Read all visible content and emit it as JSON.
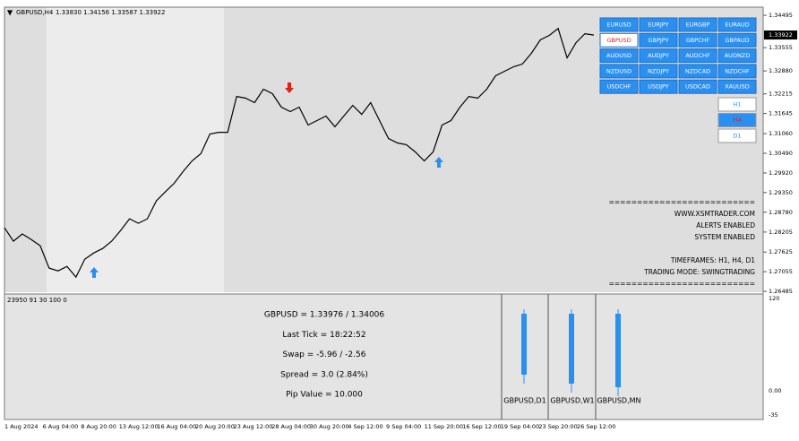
{
  "header": {
    "symbol": "GBPUSD,H4",
    "quote": "1.33830 1.34156 1.33587 1.33922"
  },
  "chart_data": {
    "type": "line",
    "color": "#000000",
    "values": [
      1.2833,
      1.2794,
      1.2815,
      1.2799,
      1.2781,
      1.2716,
      1.2708,
      1.2721,
      1.269,
      1.2742,
      1.276,
      1.2773,
      1.2794,
      1.2825,
      1.2859,
      1.2846,
      1.2859,
      1.2911,
      1.2937,
      1.2962,
      1.2996,
      1.3027,
      1.3048,
      1.3105,
      1.311,
      1.311,
      1.3214,
      1.3209,
      1.3196,
      1.3235,
      1.3222,
      1.3183,
      1.317,
      1.3183,
      1.3131,
      1.3144,
      1.3157,
      1.3126,
      1.3157,
      1.3188,
      1.3162,
      1.3196,
      1.3144,
      1.3092,
      1.3079,
      1.3074,
      1.3053,
      1.3027,
      1.3053,
      1.3131,
      1.3144,
      1.3183,
      1.3214,
      1.3209,
      1.3235,
      1.3274,
      1.3287,
      1.33,
      1.3308,
      1.3339,
      1.3378,
      1.3391,
      1.3411,
      1.3326,
      1.337,
      1.3396,
      1.3392
    ],
    "ylim": [
      1.2646,
      1.3473
    ],
    "yticks": [
      1.34495,
      1.33555,
      {
        "value": 1.3288,
        "label": "1.32880"
      },
      1.32215,
      1.31645,
      {
        "value": 1.3106,
        "label": "1.31060"
      },
      {
        "value": 1.3049,
        "label": "1.30490"
      },
      {
        "value": 1.2992,
        "label": "1.29920"
      },
      {
        "value": 1.2935,
        "label": "1.29350"
      },
      {
        "value": 1.2878,
        "label": "1.28780"
      },
      1.28205,
      1.27625,
      1.27055,
      1.26485
    ],
    "last_price": 1.33922,
    "x_labels": [
      "1 Aug 2024",
      "6 Aug 04:00",
      "8 Aug 20:00",
      "13 Aug 12:00",
      "16 Aug 04:00",
      "20 Aug 20:00",
      "23 Aug 12:00",
      "28 Aug 04:00",
      "30 Aug 20:00",
      "4 Sep 12:00",
      "9 Sep 04:00",
      "11 Sep 20:00",
      "16 Sep 12:00",
      "19 Sep 04:00",
      "23 Sep 20:00",
      "26 Sep 12:00"
    ]
  },
  "symbol_buttons": [
    "EURUSD",
    "EURJPY",
    "EURGBP",
    "EURAUD",
    "GBPUSD",
    "GBPJPY",
    "GBPCHF",
    "GBPAUD",
    "AUDUSD",
    "AUDJPY",
    "AUDCHF",
    "AUDNZD",
    "NZDUSD",
    "NZDJPY",
    "NZDCAD",
    "NZDCHF",
    "USDCHF",
    "USDJPY",
    "USDCAD",
    "XAUUSD"
  ],
  "timeframe_buttons": [
    "H1",
    "H4",
    "D1"
  ],
  "info_lines": [
    "==========================",
    "WWW.XSMTRADER.COM",
    "ALERTS ENABLED",
    "SYSTEM ENABLED",
    "TIMEFRAMES: H1, H4, D1",
    "TRADING MODE: SWINGTRADING",
    "=========================="
  ],
  "indicator": {
    "label": "23950 91 30 100 0",
    "stats": [
      "GBPUSD = 1.33976 / 1.34006",
      "Last Tick = 18:22:52",
      "Swap = -5.96 / -2.56",
      "Spread = 3.0  (2.84%)",
      "Pip Value = 10.000"
    ],
    "bars": [
      "GBPUSD,D1",
      "GBPUSD,W1",
      "GBPUSD,MN"
    ],
    "yticks": [
      "120",
      "0.00",
      "-35"
    ]
  }
}
